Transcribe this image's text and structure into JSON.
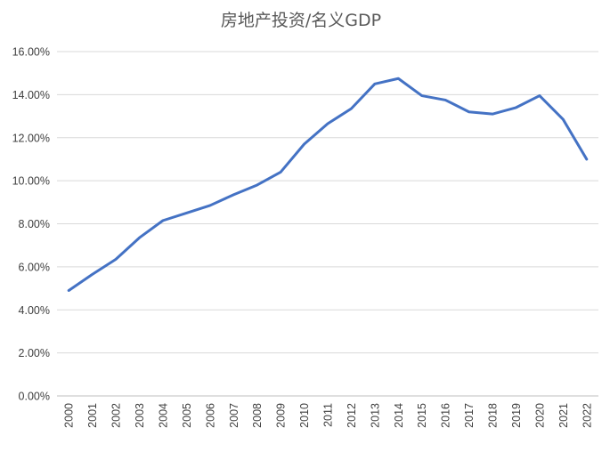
{
  "chart_data": {
    "type": "line",
    "title": "房地产投资/名义GDP",
    "xlabel": "",
    "ylabel": "",
    "categories": [
      "2000",
      "2001",
      "2002",
      "2003",
      "2004",
      "2005",
      "2006",
      "2007",
      "2008",
      "2009",
      "2010",
      "2011",
      "2012",
      "2013",
      "2014",
      "2015",
      "2016",
      "2017",
      "2018",
      "2019",
      "2020",
      "2021",
      "2022"
    ],
    "series": [
      {
        "color": "#4472c4",
        "values": [
          4.9,
          5.65,
          6.35,
          7.35,
          8.15,
          8.5,
          8.85,
          9.35,
          9.8,
          10.4,
          11.7,
          12.65,
          13.35,
          14.5,
          14.75,
          13.95,
          13.75,
          13.2,
          13.1,
          13.4,
          13.95,
          12.85,
          11.0
        ]
      }
    ],
    "ylim": [
      0,
      16
    ],
    "yticks": [
      0,
      2,
      4,
      6,
      8,
      10,
      12,
      14,
      16
    ],
    "ytick_labels": [
      "0.00%",
      "2.00%",
      "4.00%",
      "6.00%",
      "8.00%",
      "10.00%",
      "12.00%",
      "14.00%",
      "16.00%"
    ],
    "grid": true,
    "legend": "none",
    "x_tick_rotation": "vertical"
  }
}
